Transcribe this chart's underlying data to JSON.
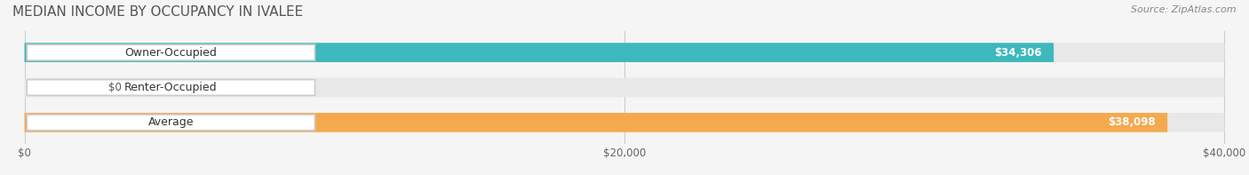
{
  "title": "MEDIAN INCOME BY OCCUPANCY IN IVALEE",
  "source": "Source: ZipAtlas.com",
  "categories": [
    "Owner-Occupied",
    "Renter-Occupied",
    "Average"
  ],
  "values": [
    34306,
    0,
    38098
  ],
  "bar_colors": [
    "#3db8bc",
    "#b89ec4",
    "#f5a94e"
  ],
  "label_colors": [
    "#ffffff",
    "#555555",
    "#ffffff"
  ],
  "value_labels": [
    "$34,306",
    "$0",
    "$38,098"
  ],
  "xlim": [
    0,
    40000
  ],
  "xticks": [
    0,
    20000,
    40000
  ],
  "xtick_labels": [
    "$0",
    "$20,000",
    "$40,000"
  ],
  "bg_color": "#f5f5f5",
  "bar_bg_color": "#e8e8e8",
  "title_fontsize": 11,
  "label_fontsize": 9,
  "value_fontsize": 8.5,
  "source_fontsize": 8
}
